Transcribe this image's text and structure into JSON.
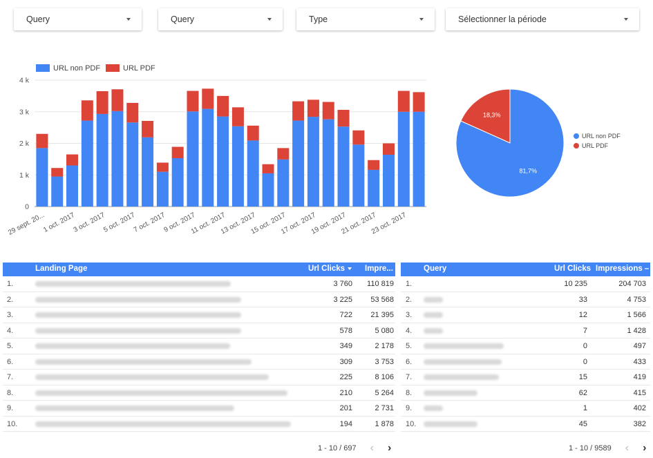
{
  "filters": [
    {
      "label": "Query"
    },
    {
      "label": "Query"
    },
    {
      "label": "Type"
    },
    {
      "label": "Sélectionner la période"
    }
  ],
  "colors": {
    "non_pdf": "#4285f4",
    "pdf": "#db4437",
    "header": "#4285f4"
  },
  "chart_data": [
    {
      "type": "bar",
      "stacked": true,
      "categories": [
        "29 sept. 2017",
        "30 sept. 2017",
        "1 oct. 2017",
        "2 oct. 2017",
        "3 oct. 2017",
        "4 oct. 2017",
        "5 oct. 2017",
        "6 oct. 2017",
        "7 oct. 2017",
        "8 oct. 2017",
        "9 oct. 2017",
        "10 oct. 2017",
        "11 oct. 2017",
        "12 oct. 2017",
        "13 oct. 2017",
        "14 oct. 2017",
        "15 oct. 2017",
        "16 oct. 2017",
        "17 oct. 2017",
        "18 oct. 2017",
        "19 oct. 2017",
        "20 oct. 2017",
        "21 oct. 2017",
        "22 oct. 2017",
        "23 oct. 2017",
        "24 oct. 2017"
      ],
      "tick_labels": [
        "29 sept. 20...",
        "1 oct. 2017",
        "3 oct. 2017",
        "5 oct. 2017",
        "7 oct. 2017",
        "9 oct. 2017",
        "11 oct. 2017",
        "13 oct. 2017",
        "15 oct. 2017",
        "17 oct. 2017",
        "19 oct. 2017",
        "21 oct. 2017",
        "23 oct. 2017"
      ],
      "series": [
        {
          "name": "URL non PDF",
          "values": [
            1850,
            950,
            1300,
            2720,
            2930,
            3020,
            2660,
            2190,
            1100,
            1530,
            3010,
            3090,
            2850,
            2540,
            2090,
            1050,
            1490,
            2720,
            2840,
            2760,
            2530,
            1960,
            1160,
            1640,
            3000,
            3000
          ]
        },
        {
          "name": "URL PDF",
          "values": [
            450,
            270,
            350,
            640,
            720,
            690,
            620,
            520,
            290,
            360,
            650,
            640,
            650,
            600,
            470,
            290,
            360,
            610,
            540,
            550,
            530,
            450,
            310,
            360,
            660,
            620
          ]
        }
      ],
      "yticks": [
        "0",
        "1 k",
        "2 k",
        "3 k",
        "4 k"
      ],
      "ylim": [
        0,
        4000
      ],
      "legend": "top-left"
    },
    {
      "type": "pie",
      "slices": [
        {
          "name": "URL non PDF",
          "value": 81.7,
          "label": "81,7%"
        },
        {
          "name": "URL PDF",
          "value": 18.3,
          "label": "18,3%"
        }
      ],
      "legend": "right"
    }
  ],
  "landing_table": {
    "headers": {
      "page": "Landing Page",
      "clicks": "Url Clicks",
      "impressions": "Impre..."
    },
    "rows": [
      {
        "idx": "1.",
        "clicks": "3 760",
        "impressions": "110 819"
      },
      {
        "idx": "2.",
        "clicks": "3 225",
        "impressions": "53 568"
      },
      {
        "idx": "3.",
        "clicks": "722",
        "impressions": "21 395"
      },
      {
        "idx": "4.",
        "clicks": "578",
        "impressions": "5 080"
      },
      {
        "idx": "5.",
        "clicks": "349",
        "impressions": "2 178"
      },
      {
        "idx": "6.",
        "clicks": "309",
        "impressions": "3 753"
      },
      {
        "idx": "7.",
        "clicks": "225",
        "impressions": "8 106"
      },
      {
        "idx": "8.",
        "clicks": "210",
        "impressions": "5 264"
      },
      {
        "idx": "9.",
        "clicks": "201",
        "impressions": "2 731"
      },
      {
        "idx": "10.",
        "clicks": "194",
        "impressions": "1 878"
      }
    ],
    "pagination": "1 - 10 / 697"
  },
  "query_table": {
    "headers": {
      "query": "Query",
      "clicks": "Url Clicks",
      "impressions": "Impressions"
    },
    "rows": [
      {
        "idx": "1.",
        "clicks": "10 235",
        "impressions": "204 703"
      },
      {
        "idx": "2.",
        "clicks": "33",
        "impressions": "4 753"
      },
      {
        "idx": "3.",
        "clicks": "12",
        "impressions": "1 566"
      },
      {
        "idx": "4.",
        "clicks": "7",
        "impressions": "1 428"
      },
      {
        "idx": "5.",
        "clicks": "0",
        "impressions": "497"
      },
      {
        "idx": "6.",
        "clicks": "0",
        "impressions": "433"
      },
      {
        "idx": "7.",
        "clicks": "15",
        "impressions": "419"
      },
      {
        "idx": "8.",
        "clicks": "62",
        "impressions": "415"
      },
      {
        "idx": "9.",
        "clicks": "1",
        "impressions": "402"
      },
      {
        "idx": "10.",
        "clicks": "45",
        "impressions": "382"
      }
    ],
    "pagination": "1 - 10 / 9589"
  }
}
